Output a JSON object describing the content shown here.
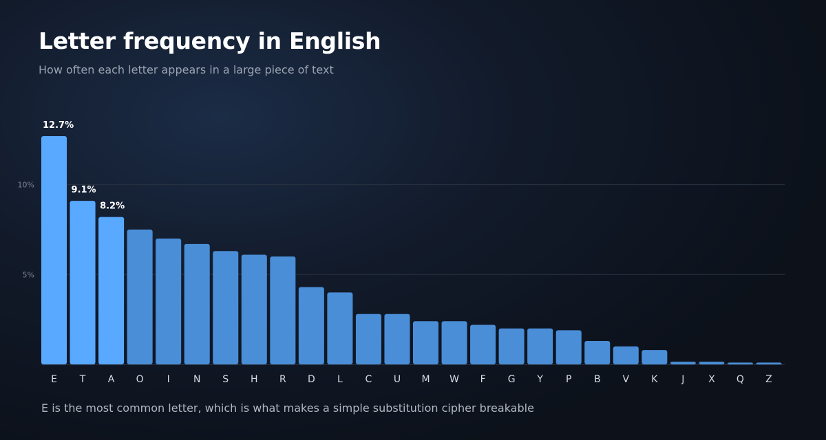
{
  "title": "Letter frequency in English",
  "subtitle": "How often each letter appears in a large piece of text",
  "footnote": "E is the most common letter, which is what makes a simple substitution cipher breakable",
  "colors": {
    "highlight_bar": "#58a9ff",
    "bar": "#4a8ed8",
    "gridline": "#2a3341"
  },
  "chart_data": {
    "type": "bar",
    "title": "Letter frequency in English",
    "subtitle": "How often each letter appears in a large piece of text",
    "xlabel": "",
    "ylabel": "",
    "categories": [
      "E",
      "T",
      "A",
      "O",
      "I",
      "N",
      "S",
      "H",
      "R",
      "D",
      "L",
      "C",
      "U",
      "M",
      "W",
      "F",
      "G",
      "Y",
      "P",
      "B",
      "V",
      "K",
      "J",
      "X",
      "Q",
      "Z"
    ],
    "values": [
      12.7,
      9.1,
      8.2,
      7.5,
      7.0,
      6.7,
      6.3,
      6.1,
      6.0,
      4.3,
      4.0,
      2.8,
      2.8,
      2.4,
      2.4,
      2.2,
      2.0,
      2.0,
      1.9,
      1.3,
      1.0,
      0.8,
      0.15,
      0.15,
      0.1,
      0.1
    ],
    "ylim": [
      0,
      12.7
    ],
    "yticks": [
      {
        "value": 5,
        "label": "5%"
      },
      {
        "value": 10,
        "label": "10%"
      }
    ],
    "highlighted": [
      "E",
      "T",
      "A"
    ],
    "data_labels": {
      "E": "12.7%",
      "T": "9.1%",
      "A": "8.2%"
    },
    "grid": true
  }
}
